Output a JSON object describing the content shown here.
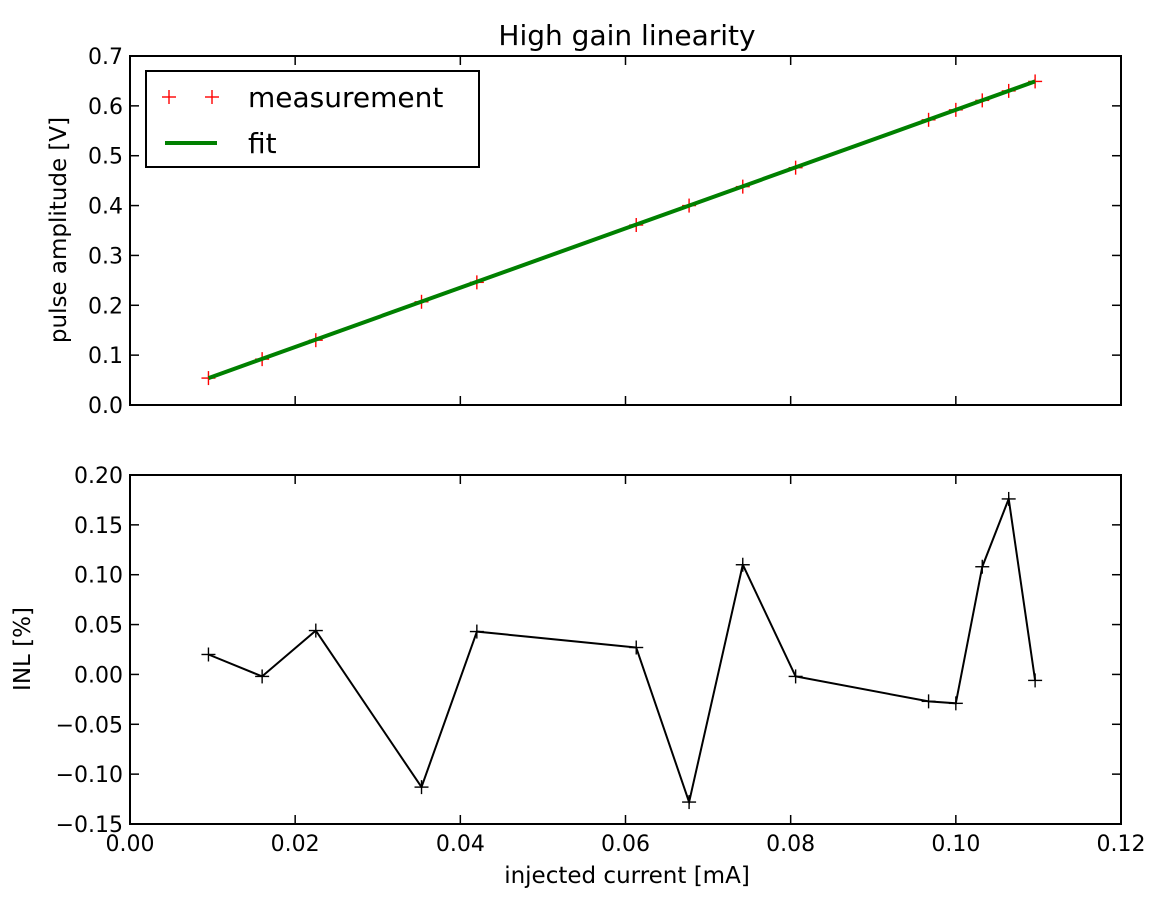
{
  "chart_data": [
    {
      "type": "line",
      "title": "High gain linearity",
      "xlabel": "",
      "ylabel": "pulse amplitude [V]",
      "xlim": [
        0.0,
        0.12
      ],
      "ylim": [
        0.0,
        0.7
      ],
      "xticks": [
        0.0,
        0.02,
        0.04,
        0.06,
        0.08,
        0.1,
        0.12
      ],
      "xtick_labels": [],
      "yticks": [
        0.0,
        0.1,
        0.2,
        0.3,
        0.4,
        0.5,
        0.6,
        0.7
      ],
      "ytick_labels": [
        "0.0",
        "0.1",
        "0.2",
        "0.3",
        "0.4",
        "0.5",
        "0.6",
        "0.7"
      ],
      "legend": {
        "position": "top-left",
        "entries": [
          "measurement",
          "fit"
        ]
      },
      "series": [
        {
          "name": "measurement",
          "style": "markers",
          "marker": "+",
          "color": "#ff0000",
          "x": [
            0.0095,
            0.016,
            0.0225,
            0.0353,
            0.042,
            0.0613,
            0.0677,
            0.0742,
            0.0806,
            0.0967,
            0.1,
            0.1032,
            0.1064,
            0.1096
          ],
          "y": [
            0.054,
            0.092,
            0.13,
            0.207,
            0.246,
            0.361,
            0.4,
            0.438,
            0.476,
            0.572,
            0.592,
            0.611,
            0.63,
            0.649
          ]
        },
        {
          "name": "fit",
          "style": "line",
          "color": "#008000",
          "x": [
            0.0095,
            0.1096
          ],
          "y": [
            0.054,
            0.649
          ]
        }
      ]
    },
    {
      "type": "line",
      "title": "",
      "xlabel": "injected current [mA]",
      "ylabel": "INL [%]",
      "xlim": [
        0.0,
        0.12
      ],
      "ylim": [
        -0.15,
        0.2
      ],
      "xticks": [
        0.0,
        0.02,
        0.04,
        0.06,
        0.08,
        0.1,
        0.12
      ],
      "xtick_labels": [
        "0.00",
        "0.02",
        "0.04",
        "0.06",
        "0.08",
        "0.10",
        "0.12"
      ],
      "yticks": [
        -0.15,
        -0.1,
        -0.05,
        0.0,
        0.05,
        0.1,
        0.15,
        0.2
      ],
      "ytick_labels": [
        "−0.15",
        "−0.10",
        "−0.05",
        "0.00",
        "0.05",
        "0.10",
        "0.15",
        "0.20"
      ],
      "series": [
        {
          "name": "",
          "style": "line+markers",
          "marker": "+",
          "color": "#000000",
          "x": [
            0.0095,
            0.016,
            0.0225,
            0.0353,
            0.042,
            0.0613,
            0.0677,
            0.0742,
            0.0806,
            0.0967,
            0.1,
            0.1032,
            0.1064,
            0.1096
          ],
          "y": [
            0.02,
            -0.002,
            0.044,
            -0.113,
            0.043,
            0.027,
            -0.128,
            0.11,
            -0.002,
            -0.027,
            -0.029,
            0.108,
            0.176,
            -0.006
          ]
        }
      ]
    }
  ]
}
